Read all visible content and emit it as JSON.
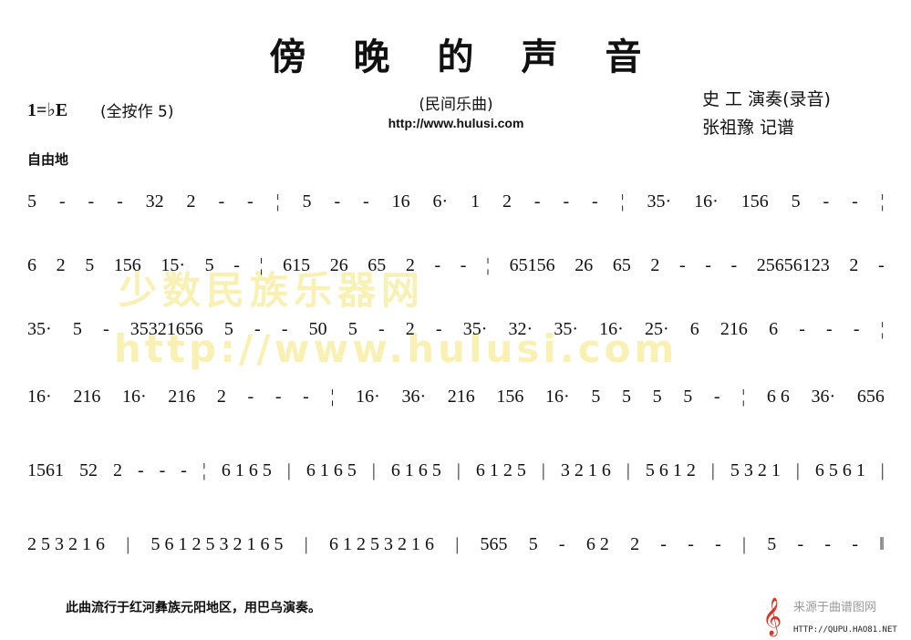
{
  "header": {
    "title": "傍晚的声音",
    "key": "1=♭E",
    "key_note": "(全按作 5)",
    "genre": "(民间乐曲)",
    "url": "http://www.hulusi.com",
    "performer": "史  工 演奏(录音)",
    "notator": "张祖豫 记谱",
    "tempo": "自由地"
  },
  "watermark": {
    "line1": "少数民族乐器网",
    "line2": "http://www.hulusi.com"
  },
  "score": {
    "lines": [
      [
        "5",
        "-",
        "-",
        "-",
        "32",
        "2",
        "-",
        "-",
        "¦",
        "5",
        "-",
        "-",
        "16",
        "6·",
        "1",
        "2",
        "-",
        "-",
        "-",
        "¦",
        "35·",
        "16·",
        "156",
        "5",
        "-",
        "-",
        "¦"
      ],
      [
        "6",
        "2",
        "5",
        "156",
        "15·",
        "5",
        "-",
        "¦",
        "615",
        "26",
        "65",
        "2",
        "-",
        "-",
        "¦",
        "65156",
        "26",
        "65",
        "2",
        "-",
        "-",
        "-",
        "25656123",
        "2",
        "-"
      ],
      [
        "35·",
        "5",
        "-",
        "35321656",
        "5",
        "-",
        "-",
        "50",
        "5",
        "-",
        "2",
        "-",
        "35·",
        "32·",
        "35·",
        "16·",
        "25·",
        "6",
        "216",
        "6",
        "-",
        "-",
        "-",
        "¦"
      ],
      [
        "16·",
        "216",
        "16·",
        "216",
        "2",
        "-",
        "-",
        "-",
        "¦",
        "16·",
        "36·",
        "216",
        "156",
        "16·",
        "5",
        "5",
        "5",
        "5",
        "-",
        "¦",
        "6 6",
        "36·",
        "656"
      ],
      [
        "1561",
        "52",
        "2",
        "-",
        "-",
        "-",
        "¦",
        "6 1 6 5",
        "|",
        "6 1 6 5",
        "|",
        "6 1 6 5",
        "|",
        "6 1 2 5",
        "|",
        "3 2 1 6",
        "|",
        "5 6 1 2",
        "|",
        "5 3 2 1",
        "|",
        "6 5 6 1",
        "|"
      ],
      [
        "2 5 3 2 1 6",
        "|",
        "5 6 1 2 5 3 2 1 6 5",
        "|",
        "6 1 2 5 3 2 1 6",
        "|",
        "565",
        "5",
        "-",
        "6 2",
        "2",
        "-",
        "-",
        "-",
        "|",
        "5",
        "-",
        "-",
        "-",
        "‖"
      ]
    ]
  },
  "footer": {
    "note": "此曲流行于红河彝族元阳地区，用巴乌演奏。",
    "source": "来源于曲谱图网",
    "source_url": "HTTP://QUPU.HAO81.NET"
  }
}
